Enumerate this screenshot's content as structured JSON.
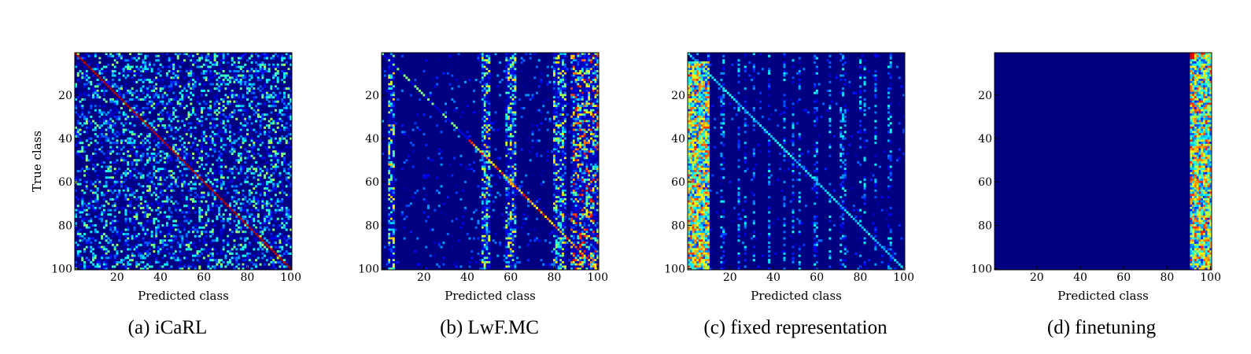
{
  "chart_data": [
    {
      "type": "heatmap",
      "caption": "(a) iCaRL",
      "xlabel": "Predicted class",
      "ylabel": "True class",
      "x_ticks": [
        "20",
        "40",
        "60",
        "80",
        "100"
      ],
      "y_ticks": [
        "20",
        "40",
        "60",
        "80",
        "100"
      ],
      "xlim": [
        1,
        100
      ],
      "ylim": [
        1,
        100
      ],
      "colormap": "jet",
      "pattern": "strong red diagonal; sparse uniform off-diagonal confusion across all classes",
      "diagonal_level": 0.95,
      "offdiag_level": 0.22
    },
    {
      "type": "heatmap",
      "caption": "(b) LwF.MC",
      "xlabel": "Predicted class",
      "ylabel": "",
      "x_ticks": [
        "20",
        "40",
        "60",
        "80",
        "100"
      ],
      "y_ticks": [
        "20",
        "40",
        "60",
        "80",
        "100"
      ],
      "xlim": [
        1,
        100
      ],
      "ylim": [
        1,
        100
      ],
      "colormap": "jet",
      "pattern": "weak diagonal; confusion concentrated in vertical bands near classes 47-50, 60, 80-100",
      "diagonal_level": 0.6,
      "band_columns": [
        [
          4,
          6
        ],
        [
          47,
          50
        ],
        [
          58,
          62
        ],
        [
          80,
          85
        ],
        [
          88,
          100
        ]
      ],
      "offdiag_level": 0.08
    },
    {
      "type": "heatmap",
      "caption": "(c) fixed representation",
      "xlabel": "Predicted class",
      "ylabel": "",
      "x_ticks": [
        "20",
        "40",
        "60",
        "80",
        "100"
      ],
      "y_ticks": [
        "20",
        "40",
        "60",
        "80",
        "100"
      ],
      "xlim": [
        1,
        100
      ],
      "ylim": [
        1,
        100
      ],
      "colormap": "jet",
      "pattern": "dense confusion toward first classes 1-10 for rows 5-100; faint diagonal; scattered vertical streaks",
      "diagonal_level": 0.3,
      "band_columns": [
        [
          1,
          10
        ]
      ],
      "offdiag_level": 0.06
    },
    {
      "type": "heatmap",
      "caption": "(d) finetuning",
      "xlabel": "Predicted class",
      "ylabel": "",
      "x_ticks": [
        "20",
        "40",
        "60",
        "80",
        "100"
      ],
      "y_ticks": [
        "20",
        "40",
        "60",
        "80",
        "100"
      ],
      "xlim": [
        1,
        100
      ],
      "ylim": [
        1,
        100
      ],
      "colormap": "jet",
      "pattern": "all predictions fall in last classes 91-100; rest of matrix empty",
      "diagonal_level": 0.0,
      "band_columns": [
        [
          91,
          100
        ]
      ],
      "offdiag_level": 0.0
    }
  ]
}
